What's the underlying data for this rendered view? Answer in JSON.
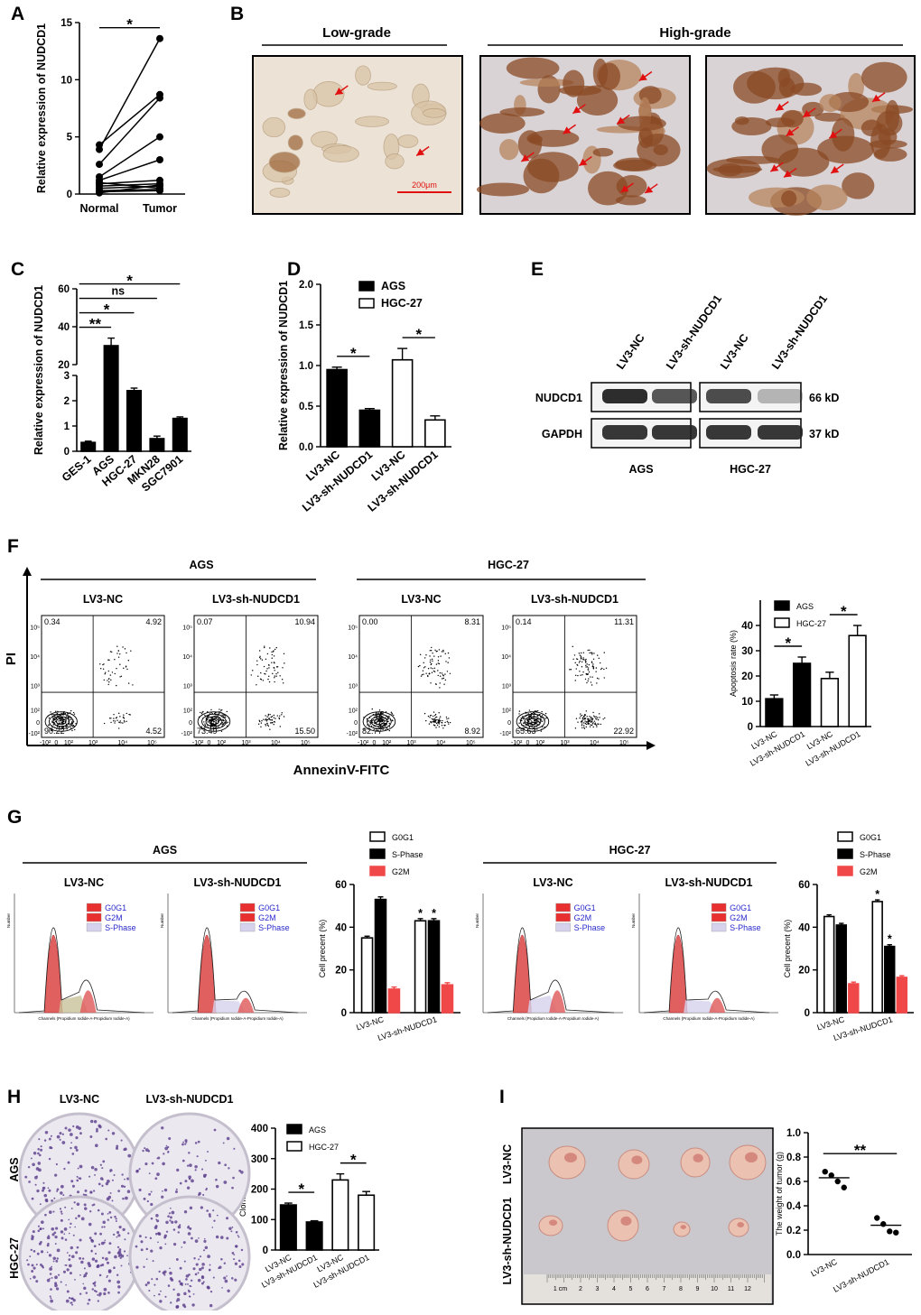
{
  "panel_labels": [
    "A",
    "B",
    "C",
    "D",
    "E",
    "F",
    "G",
    "H",
    "I"
  ],
  "chart_data": [
    {
      "type": "paired",
      "categories": [
        "Normal",
        "Tumor"
      ],
      "values": [
        [
          4.3,
          8.7
        ],
        [
          3.9,
          13.6
        ],
        [
          2.6,
          8.4
        ],
        [
          1.5,
          5.0
        ],
        [
          1.2,
          3.0
        ],
        [
          1.0,
          0.5
        ],
        [
          0.9,
          1.2
        ],
        [
          0.7,
          0.9
        ],
        [
          0.5,
          0.7
        ],
        [
          0.3,
          0.4
        ],
        [
          0.2,
          0.3
        ],
        [
          0.1,
          0.8
        ]
      ],
      "color": "#000000",
      "y_label": "Relative expression of NUDCD1",
      "ylim": [
        0,
        15
      ],
      "yticks": [
        0,
        5,
        10,
        15
      ],
      "brackets": [
        {
          "text": "*",
          "between": [
            0,
            1
          ]
        }
      ]
    },
    {
      "type": "bar",
      "categories": [
        "GES-1",
        "AGS",
        "HGC-27",
        "MKN28",
        "SGC7901"
      ],
      "values": [
        0.35,
        30,
        2.4,
        0.5,
        1.3
      ],
      "errors": [
        0.05,
        4,
        0.1,
        0.1,
        0.06
      ],
      "color": "#000000",
      "y_label": "Relative expression of NUDCD1",
      "ylim": [
        0,
        60
      ],
      "ybreak": [
        3,
        20
      ],
      "yticks": [
        0,
        1,
        2,
        3,
        20,
        40,
        60
      ],
      "brackets": [
        {
          "text": "**",
          "between": [
            0,
            1
          ]
        },
        {
          "text": "*",
          "between": [
            0,
            2
          ]
        },
        {
          "text": "ns",
          "between": [
            0,
            3
          ]
        },
        {
          "text": "*",
          "between": [
            0,
            4
          ]
        }
      ]
    },
    {
      "type": "bar",
      "categories": [
        "LV3-NC",
        "LV3-sh-NUDCD1",
        "LV3-NC",
        "LV3-sh-NUDCD1"
      ],
      "series": [
        {
          "name": "AGS",
          "color": "#000000",
          "values": [
            0.95,
            0.45,
            null,
            null
          ],
          "errors": [
            0.03,
            0.02,
            null,
            null
          ]
        },
        {
          "name": "HGC-27",
          "color": "#ffffff",
          "values": [
            null,
            null,
            1.07,
            0.33
          ],
          "errors": [
            null,
            null,
            0.14,
            0.05
          ]
        }
      ],
      "y_label": "Relative expression of NUDCD1",
      "ylim": [
        0,
        2
      ],
      "yticks": [
        {
          "value": 0,
          "label": "0.0"
        },
        0.5,
        {
          "value": 1,
          "label": "1.0"
        },
        1.5,
        {
          "value": 2,
          "label": "2.0"
        }
      ],
      "brackets": [
        {
          "text": "*",
          "between": [
            0,
            1
          ]
        },
        {
          "text": "*",
          "between": [
            2,
            3
          ]
        }
      ]
    },
    {
      "type": "bar",
      "categories": [
        "LV3-NC",
        "LV3-sh-NUDCD1",
        "LV3-NC",
        "LV3-sh-NUDCD1"
      ],
      "series": [
        {
          "name": "AGS",
          "color": "#000000",
          "values": [
            11,
            25,
            null,
            null
          ],
          "errors": [
            1.5,
            2.5,
            null,
            null
          ]
        },
        {
          "name": "HGC-27",
          "color": "#ffffff",
          "values": [
            null,
            null,
            19,
            36
          ],
          "errors": [
            null,
            null,
            2.5,
            4
          ]
        }
      ],
      "y_label": "Apoptosis rate (%)",
      "ylim": [
        0,
        50
      ],
      "yticks": [
        0,
        10,
        20,
        30,
        40
      ],
      "brackets": [
        {
          "text": "*",
          "between": [
            0,
            1
          ]
        },
        {
          "text": "*",
          "between": [
            2,
            3
          ]
        }
      ]
    },
    {
      "type": "bar",
      "categories": [
        "LV3-NC",
        "LV3-sh-NUDCD1"
      ],
      "series": [
        {
          "name": "G0G1",
          "color": "#ffffff",
          "values": [
            35,
            43
          ],
          "errors": [
            0.8,
            1
          ]
        },
        {
          "name": "S-Phase",
          "color": "#000000",
          "values": [
            53,
            43
          ],
          "errors": [
            1.2,
            1
          ]
        },
        {
          "name": "G2M",
          "color": "#f04848",
          "values": [
            11,
            13
          ],
          "errors": [
            1,
            1
          ]
        }
      ],
      "y_label": "Cell precent (%)",
      "ylim": [
        0,
        60
      ],
      "yticks": [
        0,
        20,
        40,
        60
      ],
      "marks": [
        {
          "text": "*",
          "at": [
            0,
            1
          ]
        },
        {
          "text": "*",
          "at": [
            1,
            1
          ]
        }
      ]
    },
    {
      "type": "bar",
      "categories": [
        "LV3-NC",
        "LV3-sh-NUDCD1"
      ],
      "series": [
        {
          "name": "G0G1",
          "color": "#ffffff",
          "values": [
            45,
            52
          ],
          "errors": [
            0.8,
            0.8
          ]
        },
        {
          "name": "S-Phase",
          "color": "#000000",
          "values": [
            41,
            31
          ],
          "errors": [
            0.8,
            0.8
          ]
        },
        {
          "name": "G2M",
          "color": "#f04848",
          "values": [
            13.5,
            16.5
          ],
          "errors": [
            0.8,
            0.8
          ]
        }
      ],
      "y_label": "Cell precent (%)",
      "ylim": [
        0,
        60
      ],
      "yticks": [
        0,
        20,
        40,
        60
      ],
      "marks": [
        {
          "text": "*",
          "at": [
            0,
            1
          ]
        },
        {
          "text": "*",
          "at": [
            1,
            1
          ]
        }
      ]
    },
    {
      "type": "bar",
      "categories": [
        "LV3-NC",
        "LV3-sh-NUDCD1",
        "LV3-NC",
        "LV3-sh-NUDCD1"
      ],
      "series": [
        {
          "name": "AGS",
          "color": "#000000",
          "values": [
            148,
            92,
            null,
            null
          ],
          "errors": [
            6,
            4,
            null,
            null
          ]
        },
        {
          "name": "HGC-27",
          "color": "#ffffff",
          "values": [
            null,
            null,
            230,
            180
          ],
          "errors": [
            null,
            null,
            20,
            12
          ]
        }
      ],
      "y_label": "Clone numbers",
      "ylim": [
        0,
        400
      ],
      "yticks": [
        0,
        100,
        200,
        300,
        400
      ],
      "brackets": [
        {
          "text": "*",
          "between": [
            0,
            1
          ]
        },
        {
          "text": "*",
          "between": [
            2,
            3
          ]
        }
      ]
    },
    {
      "type": "dot",
      "categories": [
        "LV3-NC",
        "LV3-sh-NUDCD1"
      ],
      "values": [
        [
          0.68,
          0.65,
          0.6,
          0.55
        ],
        [
          0.3,
          0.25,
          0.19,
          0.18
        ]
      ],
      "means": [
        0.63,
        0.24
      ],
      "color": "#000000",
      "y_label": "The weight of tumor (g)",
      "ylim": [
        0,
        1
      ],
      "yticks": [
        {
          "value": 0,
          "label": "0.0"
        },
        0.2,
        0.4,
        0.6,
        0.8,
        {
          "value": 1,
          "label": "1.0"
        }
      ],
      "brackets": [
        {
          "text": "**",
          "between": [
            0,
            1
          ]
        }
      ]
    }
  ],
  "ihc": {
    "groups": [
      "Low-grade",
      "High-grade"
    ],
    "scale_bar": "200μm"
  },
  "western": {
    "lanes": [
      "LV3-NC",
      "LV3-sh-NUDCD1",
      "LV3-NC",
      "LV3-sh-NUDCD1"
    ],
    "bands": [
      {
        "name": "NUDCD1",
        "size": "66 kD"
      },
      {
        "name": "GAPDH",
        "size": "37 kD"
      }
    ],
    "cells": [
      "AGS",
      "HGC-27"
    ]
  },
  "flow": {
    "cells": [
      "AGS",
      "HGC-27"
    ],
    "conditions": [
      "LV3-NC",
      "LV3-sh-NUDCD1",
      "LV3-NC",
      "LV3-sh-NUDCD1"
    ],
    "quadrants": [
      [
        "0.34",
        "4.92",
        "90.22",
        "4.52"
      ],
      [
        "0.07",
        "10.94",
        "73.49",
        "15.50"
      ],
      [
        "0.00",
        "8.31",
        "82.77",
        "8.92"
      ],
      [
        "0.14",
        "11.31",
        "65.63",
        "22.92"
      ]
    ],
    "ticks": [
      "-10²",
      "0",
      "10²",
      "10³",
      "10⁴",
      "10⁵"
    ],
    "y_label": "PI",
    "x_label": "AnnexinV-FITC"
  },
  "cycle": {
    "cells": [
      "AGS",
      "HGC-27"
    ],
    "conditions": [
      "LV3-NC",
      "LV3-sh-NUDCD1",
      "LV3-NC",
      "LV3-sh-NUDCD1"
    ],
    "legend": [
      "G0G1",
      "G2M",
      "S-Phase"
    ],
    "x_label": "Channels (Propidium Iodide-A-Propidium Iodide-A)",
    "y_label": "Number"
  },
  "plates": {
    "conditions": [
      "LV3-NC",
      "LV3-sh-NUDCD1"
    ],
    "cells": [
      "AGS",
      "HGC-27"
    ]
  },
  "tumor": {
    "rows": [
      "LV3-NC",
      "LV3-sh-NUDCD1"
    ],
    "ruler": [
      "1 cm",
      "2",
      "3",
      "4",
      "5",
      "6",
      "7",
      "8",
      "9",
      "10",
      "11",
      "12"
    ]
  }
}
